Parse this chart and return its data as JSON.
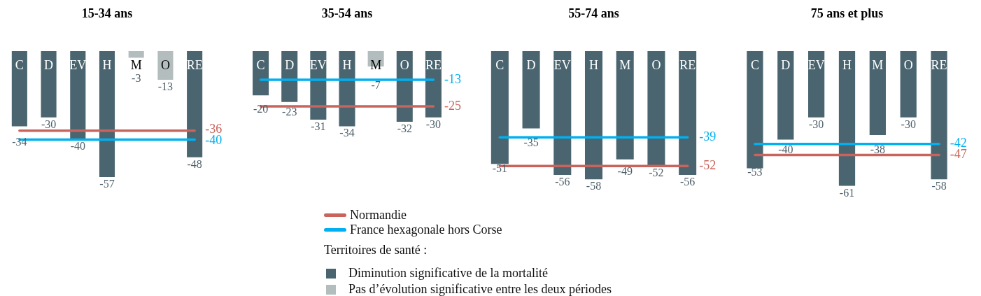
{
  "chart_data": [
    {
      "type": "bar",
      "title": "15-34 ans",
      "categories": [
        "C",
        "D",
        "EV",
        "H",
        "M",
        "O",
        "RE"
      ],
      "tick_labels": "x",
      "legend": "bottom",
      "legend_title": "Territoires de santé :",
      "series": [
        {
          "name": "Diminution significative de la mortalité",
          "color": "#4a6570",
          "values": [
            -34,
            -30,
            -40,
            -57,
            null,
            null,
            -48
          ],
          "value_labels": [
            "-34",
            "-30",
            "-40",
            "-57",
            null,
            null,
            "-48"
          ]
        },
        {
          "name": "Pas d’évolution significative entre les deux périodes",
          "color": "#b3bdbd",
          "values": [
            null,
            null,
            null,
            null,
            -3,
            -13,
            null
          ],
          "value_labels": [
            null,
            null,
            null,
            null,
            "-3",
            "-13",
            null
          ]
        },
        {
          "name": "Normandie",
          "type": "line",
          "color": "#c8645c",
          "values": [
            -36,
            -36,
            -36,
            -36,
            -36,
            -36,
            -36
          ],
          "value_labels": [
            null,
            null,
            null,
            null,
            null,
            null,
            "-36"
          ]
        },
        {
          "name": "France hexagonale hors Corse",
          "type": "line",
          "color": "#00b0f0",
          "values": [
            -40,
            -40,
            -40,
            -40,
            -40,
            -40,
            -40
          ],
          "value_labels": [
            null,
            null,
            null,
            null,
            null,
            null,
            "-40"
          ]
        }
      ]
    },
    {
      "type": "bar",
      "title": "35-54 ans",
      "categories": [
        "C",
        "D",
        "EV",
        "H",
        "M",
        "O",
        "RE"
      ],
      "tick_labels": "x",
      "series": [
        {
          "name": "Diminution significative de la mortalité",
          "color": "#4a6570",
          "values": [
            -20,
            -23,
            -31,
            -34,
            null,
            -32,
            -30
          ],
          "value_labels": [
            "-20",
            "-23",
            "-31",
            "-34",
            null,
            "-32",
            "-30"
          ]
        },
        {
          "name": "Pas d’évolution significative entre les deux périodes",
          "color": "#b3bdbd",
          "values": [
            null,
            null,
            null,
            null,
            -7,
            null,
            null
          ],
          "value_labels": [
            null,
            null,
            null,
            null,
            "-7",
            null,
            null
          ]
        },
        {
          "name": "Normandie",
          "type": "line",
          "color": "#c8645c",
          "values": [
            -25,
            -25,
            -25,
            -25,
            -25,
            -25,
            -25
          ],
          "value_labels": [
            null,
            null,
            null,
            null,
            null,
            null,
            "-25"
          ]
        },
        {
          "name": "France hexagonale hors Corse",
          "type": "line",
          "color": "#00b0f0",
          "values": [
            -13,
            -13,
            -13,
            -13,
            -13,
            -13,
            -13
          ],
          "value_labels": [
            null,
            null,
            null,
            null,
            null,
            null,
            "-13"
          ]
        }
      ]
    },
    {
      "type": "bar",
      "title": "55-74 ans",
      "categories": [
        "C",
        "D",
        "EV",
        "H",
        "M",
        "O",
        "RE"
      ],
      "tick_labels": "x",
      "series": [
        {
          "name": "Diminution significative de la mortalité",
          "color": "#4a6570",
          "values": [
            -51,
            -35,
            -56,
            -58,
            -49,
            -52,
            -56
          ],
          "value_labels": [
            "-51",
            "-35",
            "-56",
            "-58",
            "-49",
            "-52",
            "-56"
          ]
        },
        {
          "name": "Normandie",
          "type": "line",
          "color": "#c8645c",
          "values": [
            -52,
            -52,
            -52,
            -52,
            -52,
            -52,
            -52
          ],
          "value_labels": [
            null,
            null,
            null,
            null,
            null,
            null,
            "-52"
          ]
        },
        {
          "name": "France hexagonale hors Corse",
          "type": "line",
          "color": "#00b0f0",
          "values": [
            -39,
            -39,
            -39,
            -39,
            -39,
            -39,
            -39
          ],
          "value_labels": [
            null,
            null,
            null,
            null,
            null,
            null,
            "-39"
          ]
        }
      ]
    },
    {
      "type": "bar",
      "title": "75 ans et plus",
      "categories": [
        "C",
        "D",
        "EV",
        "H",
        "M",
        "O",
        "RE"
      ],
      "tick_labels": "x",
      "series": [
        {
          "name": "Diminution significative de la mortalité",
          "color": "#4a6570",
          "values": [
            -53,
            -40,
            -30,
            -61,
            -38,
            -30,
            -58
          ],
          "value_labels": [
            "-53",
            "-40",
            "-30",
            "-61",
            "-38",
            "-30",
            "-58"
          ]
        },
        {
          "name": "Normandie",
          "type": "line",
          "color": "#c8645c",
          "values": [
            -47,
            -47,
            -47,
            -47,
            -47,
            -47,
            -47
          ],
          "value_labels": [
            null,
            null,
            null,
            null,
            null,
            null,
            "-47"
          ]
        },
        {
          "name": "France hexagonale hors Corse",
          "type": "line",
          "color": "#00b0f0",
          "values": [
            -42,
            -42,
            -42,
            -42,
            -42,
            -42,
            -42
          ],
          "value_labels": [
            null,
            null,
            null,
            null,
            null,
            null,
            "-42"
          ]
        }
      ]
    }
  ]
}
